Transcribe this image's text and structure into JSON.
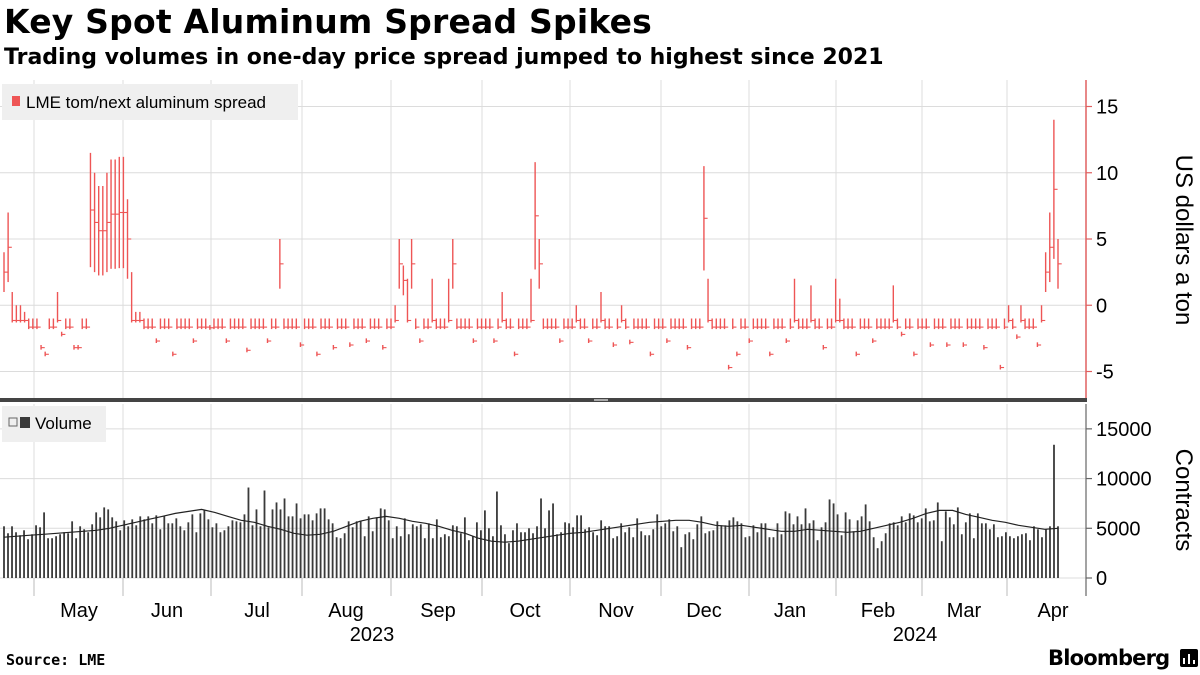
{
  "header": {
    "title": "Key Spot Aluminum Spread Spikes",
    "subtitle": "Trading volumes in one-day price spread jumped to highest since 2021"
  },
  "footer": {
    "source": "Source: LME",
    "brand": "Bloomberg"
  },
  "colors": {
    "spread": "#ee5555",
    "volume": "#3a3a3a",
    "grid": "#dcdcdc",
    "avg_line": "#222222",
    "axis": "#e06060"
  },
  "chart_data": [
    {
      "type": "line",
      "title": "Key Spot Aluminum Spread Spikes",
      "subtitle": "Trading volumes in one-day price spread jumped to highest since 2021",
      "series": [
        {
          "name": "LME tom/next aluminum spread",
          "style": "high-low bars",
          "x_start": "2023-04-03",
          "x_end": "2024-04-08",
          "highs": [
            4,
            7,
            1,
            0,
            0,
            -0.5,
            -1,
            -1,
            -1,
            -3,
            -3.5,
            -1,
            -1,
            1,
            -2,
            -1,
            -1,
            -3,
            -3,
            -1,
            -1,
            11.5,
            10,
            9,
            9,
            10,
            11,
            11,
            11.2,
            11.2,
            8,
            2.5,
            -0.5,
            -0.5,
            -1,
            -1,
            -1,
            -2.5,
            -1,
            -1,
            -1,
            -3.5,
            -1,
            -1,
            -1,
            -1,
            -2.5,
            -1,
            -1,
            -1,
            -1.5,
            -1,
            -1,
            -1,
            -2.5,
            -1,
            -1,
            -1,
            -1,
            -3.2,
            -1,
            -1,
            -1,
            -1,
            -2.5,
            -1,
            -1,
            5,
            -1,
            -1,
            -1,
            -1,
            -2.8,
            -1,
            -1,
            -1,
            -3.5,
            -1,
            -1,
            -1,
            -3,
            -1,
            -1,
            -1,
            -2.8,
            -1,
            -1,
            -1,
            -2.5,
            -1,
            -1,
            -1,
            -3,
            -1,
            -1,
            0,
            5,
            3,
            2,
            5,
            -1,
            -2.5,
            -1,
            -1,
            2,
            -1,
            -1,
            -1,
            2,
            5,
            -1,
            -1,
            -1,
            -1,
            -2.5,
            -1,
            -1,
            -1,
            -1,
            -2.5,
            -1,
            1,
            -1,
            -1,
            -3.5,
            -1,
            -1,
            -1,
            2,
            10.8,
            5,
            -1,
            -1,
            -1,
            -1,
            -2.5,
            -1,
            -1,
            -1,
            0,
            -1,
            -1,
            -2.5,
            -1,
            -1,
            1,
            -1,
            -1,
            -2.8,
            -1,
            0,
            -1,
            -2.6,
            -1,
            -1,
            -1,
            -1,
            -3.5,
            -1,
            -1,
            -1,
            -2.5,
            -1,
            -1,
            -1,
            -1,
            -3,
            -1,
            -1,
            -1,
            10.5,
            2,
            -1,
            -1,
            -1,
            -1,
            -4.5,
            -1,
            -3.5,
            -1,
            -1,
            -2.5,
            -1,
            -1,
            -1,
            -1,
            -3.5,
            -1,
            -1,
            -1,
            -2.5,
            -1,
            2,
            -1,
            -1,
            -1,
            1.5,
            -1,
            -1,
            -3,
            -1,
            -1,
            2,
            0.5,
            -1,
            -1,
            -1,
            -3.5,
            -1,
            -1,
            -1,
            -2.5,
            -1,
            -1,
            -1,
            -1,
            1.5,
            -1,
            -2,
            -1,
            -1,
            -3.5,
            -1,
            -1,
            -1,
            -2.8,
            -1,
            -1,
            -1,
            -2.8,
            -1,
            -1,
            -1,
            -2.8,
            -1,
            -1,
            -1,
            -1,
            -3,
            -1,
            -1,
            -1,
            -4.5,
            -1,
            0,
            -1,
            -2.2,
            0,
            -1,
            -1,
            -1,
            -2.8,
            0,
            4,
            7,
            14,
            5
          ]
        }
      ],
      "y_axis": {
        "label": "US dollars a ton",
        "range": [
          -7,
          17
        ],
        "ticks": [
          -5,
          0,
          5,
          10,
          15
        ]
      },
      "grid": true,
      "legend": "top-left"
    },
    {
      "type": "bar",
      "series": [
        {
          "name": "Volume",
          "values": [
            5200,
            4500,
            5200,
            4600,
            4300,
            4800,
            3900,
            4400,
            5300,
            5100,
            6600,
            4000,
            4000,
            4200,
            4400,
            4600,
            4500,
            5700,
            4000,
            5200,
            4900,
            4600,
            5400,
            6600,
            6100,
            7100,
            6900,
            6100,
            5700,
            4800,
            5800,
            5200,
            5900,
            5300,
            6200,
            5900,
            6200,
            5500,
            6300,
            4900,
            6200,
            5500,
            5500,
            6000,
            5200,
            4800,
            5600,
            6400,
            4600,
            6500,
            6800,
            5900,
            5100,
            5500,
            4600,
            4800,
            5200,
            5800,
            5700,
            5600,
            6400,
            9100,
            5300,
            6900,
            5200,
            8800,
            5100,
            6900,
            7600,
            6900,
            8000,
            6200,
            6200,
            7500,
            6000,
            6400,
            6400,
            5800,
            6500,
            7000,
            7000,
            5900,
            5500,
            4100,
            4000,
            4500,
            5700,
            5100,
            5700,
            5700,
            4200,
            6200,
            4700,
            6100,
            7000,
            6900,
            5800,
            4000,
            5200,
            4200,
            6000,
            4400,
            5400,
            5200,
            5400,
            4000,
            5500,
            4000,
            5900,
            4100,
            4400,
            4200,
            5300,
            5200,
            4500,
            6100,
            3800,
            4200,
            5600,
            4800,
            6800,
            5000,
            4200,
            8700,
            5300,
            4400,
            3500,
            4800,
            5500,
            4600,
            4600,
            5000,
            4500,
            5200,
            8000,
            5000,
            6800,
            7500,
            4400,
            4600,
            5600,
            5500,
            5100,
            6300,
            6300,
            4900,
            5100,
            4600,
            4300,
            5800,
            5200,
            5200,
            4000,
            4200,
            5500,
            4600,
            5100,
            4100,
            6000,
            4700,
            4300,
            4300,
            4900,
            6400,
            5200,
            5500,
            5900,
            4700,
            5200,
            3100,
            4400,
            4600,
            3900,
            5400,
            6200,
            4500,
            4700,
            4800,
            5700,
            5300,
            5300,
            5800,
            6100,
            5700,
            5500,
            4100,
            4200,
            5300,
            4600,
            5500,
            5500,
            4100,
            4100,
            5500,
            4400,
            6700,
            6500,
            5400,
            6200,
            5400,
            7000,
            5500,
            5800,
            3800,
            5100,
            5600,
            7900,
            7500,
            6400,
            4300,
            6600,
            5900,
            4700,
            5800,
            6200,
            7400,
            5700,
            4100,
            3000,
            3700,
            4500,
            5500,
            5600,
            5300,
            6200,
            5600,
            6500,
            6300,
            5600,
            6000,
            7000,
            5700,
            5800,
            7600,
            3700,
            6700,
            6100,
            5400,
            7100,
            4400,
            5600,
            6500,
            4000,
            6500,
            5500,
            5500,
            4900,
            5400,
            4100,
            4200,
            4600,
            4200,
            4000,
            4200,
            4400,
            4500,
            3800,
            5200,
            4900,
            4100,
            4900,
            5200,
            13400,
            5200
          ],
          "moving_average": [
            4100,
            4200,
            4300,
            4400,
            4500,
            4600,
            4700,
            4800,
            5000,
            5300,
            5600,
            5900,
            6200,
            6500,
            6700,
            6900,
            6600,
            6200,
            5800,
            5600,
            5200,
            4900,
            4500,
            4300,
            4400,
            4700,
            5200,
            5700,
            6000,
            6200,
            6000,
            5700,
            5500,
            5200,
            4800,
            4500,
            4000,
            3700,
            3600,
            3700,
            3900,
            4100,
            4300,
            4500,
            4600,
            4800,
            5000,
            5200,
            5400,
            5600,
            5700,
            5800,
            5800,
            5600,
            5300,
            5200,
            5300,
            5100,
            4900,
            4700,
            4700,
            4900,
            4800,
            4700,
            4600,
            4700,
            5000,
            5300,
            5600,
            6000,
            6500,
            6800,
            6800,
            6400,
            6100,
            5800,
            5600,
            5300,
            5100,
            4900,
            5000
          ]
        }
      ],
      "y_axis": {
        "label": "Contracts",
        "range": [
          0,
          17500
        ],
        "ticks": [
          0,
          5000,
          10000,
          15000
        ]
      },
      "x_axis": {
        "months": [
          "May",
          "Jun",
          "Jul",
          "Aug",
          "Sep",
          "Oct",
          "Nov",
          "Dec",
          "Jan",
          "Feb",
          "Mar",
          "Apr"
        ],
        "years": [
          "2023",
          "2024"
        ]
      },
      "grid": true,
      "legend": "top-left"
    }
  ]
}
